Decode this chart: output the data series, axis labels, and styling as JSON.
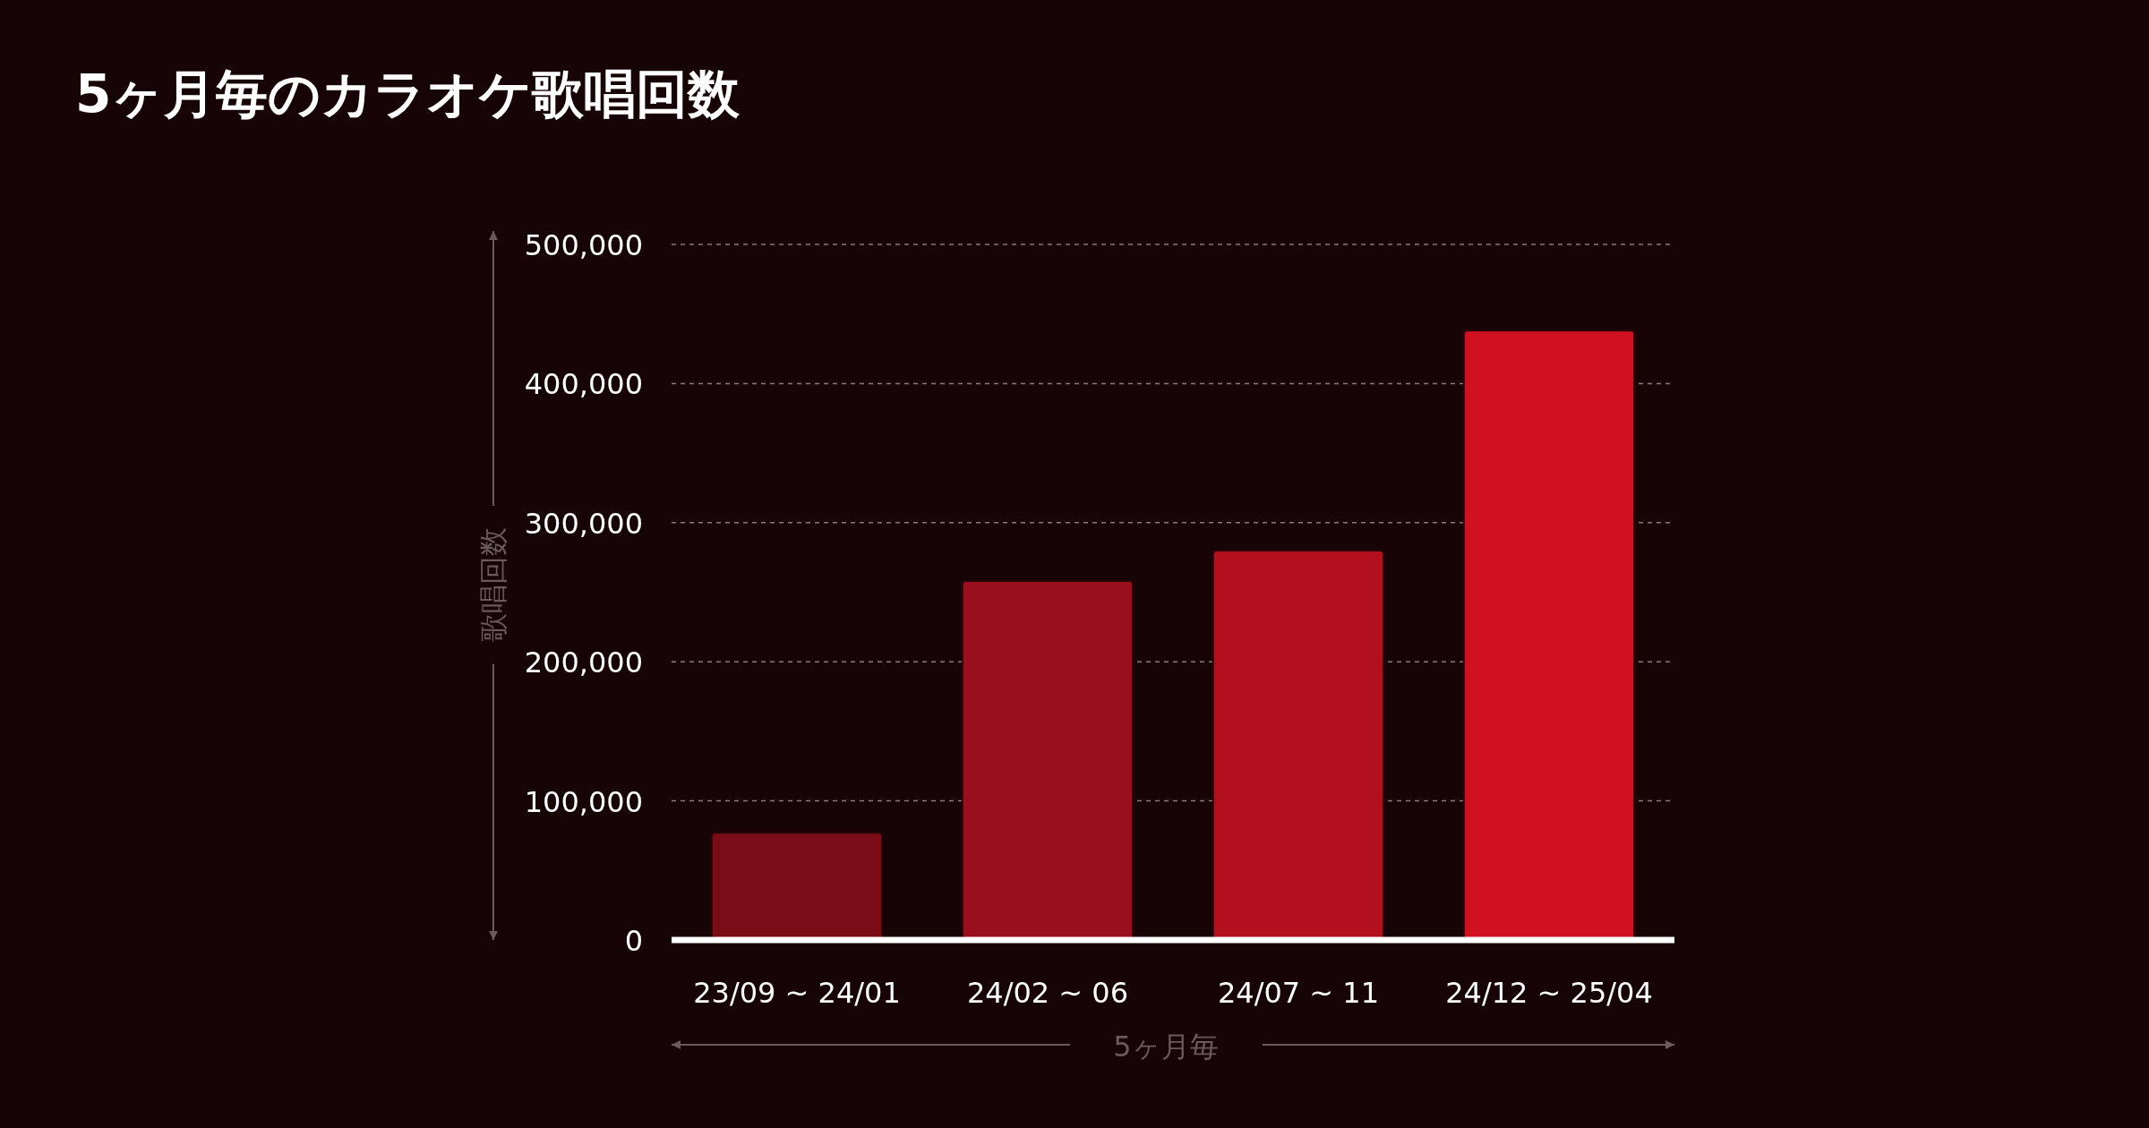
{
  "chart_data": {
    "type": "bar",
    "title": "5ヶ月毎のカラオケ歌唱回数",
    "xlabel": "5ヶ月毎",
    "ylabel": "歌唱回数",
    "categories": [
      "23/09 ~ 24/01",
      "24/02 ~ 06",
      "24/07 ~ 11",
      "24/12 ~ 25/04"
    ],
    "values": [
      77000,
      258000,
      280000,
      438000
    ],
    "colors": [
      "#7a0c18",
      "#9a0f1e",
      "#b2101e",
      "#d0111f"
    ],
    "ylim": [
      0,
      500000
    ],
    "yticks": [
      {
        "value": 0,
        "label": "0"
      },
      {
        "value": 100000,
        "label": "100,000"
      },
      {
        "value": 200000,
        "label": "200,000"
      },
      {
        "value": 300000,
        "label": "300,000"
      },
      {
        "value": 400000,
        "label": "400,000"
      },
      {
        "value": 500000,
        "label": "500,000"
      }
    ],
    "grid": "y"
  }
}
